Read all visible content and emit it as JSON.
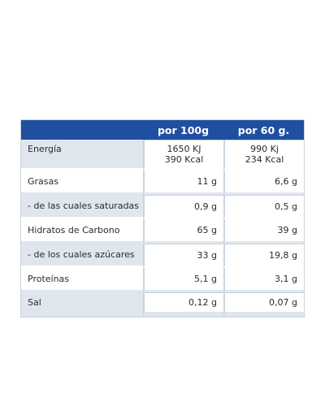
{
  "table": {
    "headers": [
      "",
      "por 100g",
      "por 60 g."
    ],
    "rows": [
      {
        "label": "Energía",
        "per_100g": [
          "1650 KJ",
          "390 Kcal"
        ],
        "per_60g": [
          "990 Kj",
          "234 Kcal"
        ]
      },
      {
        "label": "Grasas",
        "per_100g": "11 g",
        "per_60g": "6,6 g"
      },
      {
        "label": "- de las cuales saturadas",
        "per_100g": "0,9 g",
        "per_60g": "0,5 g"
      },
      {
        "label": "Hidratos de Carbono",
        "per_100g": "65 g",
        "per_60g": "39 g"
      },
      {
        "label": "- de los cuales azúcares",
        "per_100g": "33 g",
        "per_60g": "19,8 g"
      },
      {
        "label": "Proteínas",
        "per_100g": "5,1 g",
        "per_60g": "3,1 g"
      },
      {
        "label": "Sal",
        "per_100g": "0,12 g",
        "per_60g": "0,07 g"
      }
    ]
  },
  "colors": {
    "header_background": "#1f4fa0",
    "row_shade": "#dfe6ee",
    "border": "#c8d3df"
  }
}
